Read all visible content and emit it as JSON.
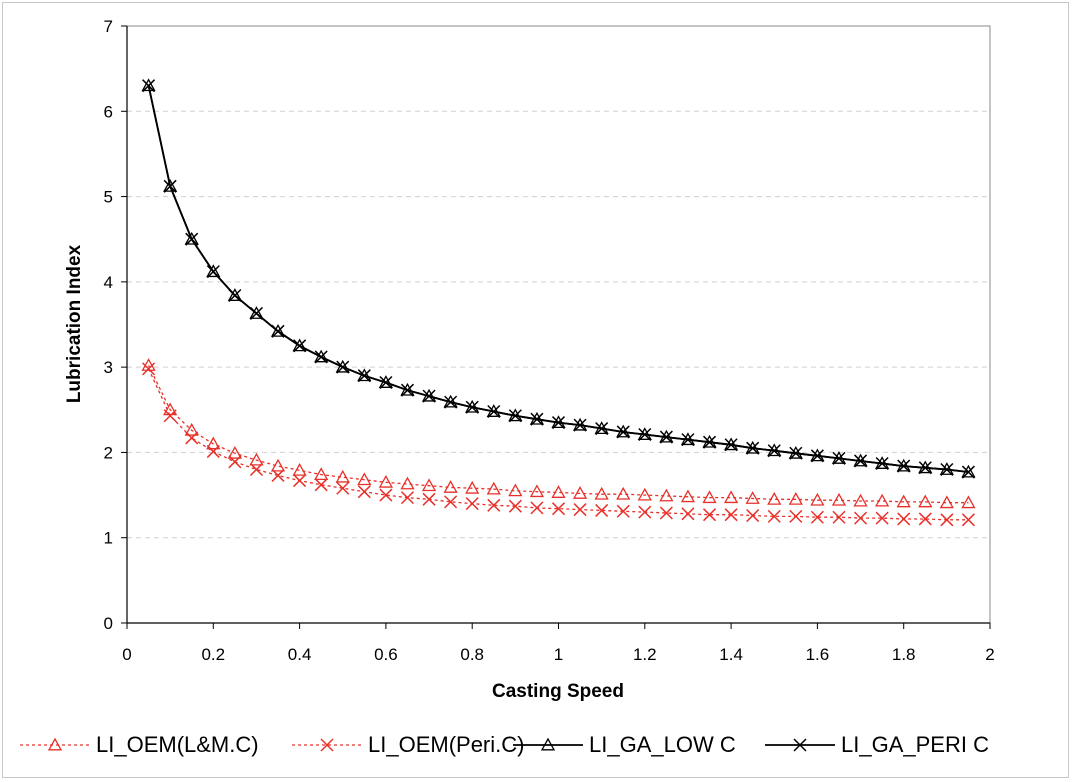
{
  "chart_data": {
    "type": "line",
    "xlabel": "Casting Speed",
    "ylabel": "Lubrication Index",
    "xlim": [
      0,
      2
    ],
    "ylim": [
      0,
      7
    ],
    "x_ticks": [
      "0",
      "0.2",
      "0.4",
      "0.6",
      "0.8",
      "1",
      "1.2",
      "1.4",
      "1.6",
      "1.8",
      "2"
    ],
    "y_ticks": [
      "0",
      "1",
      "2",
      "3",
      "4",
      "5",
      "6",
      "7"
    ],
    "grid": "horizontal dashed",
    "legend_position": "bottom",
    "x": [
      0.05,
      0.1,
      0.15,
      0.2,
      0.25,
      0.3,
      0.35,
      0.4,
      0.45,
      0.5,
      0.55,
      0.6,
      0.65,
      0.7,
      0.75,
      0.8,
      0.85,
      0.9,
      0.95,
      1.0,
      1.05,
      1.1,
      1.15,
      1.2,
      1.25,
      1.3,
      1.35,
      1.4,
      1.45,
      1.5,
      1.55,
      1.6,
      1.65,
      1.7,
      1.75,
      1.8,
      1.85,
      1.9,
      1.95
    ],
    "series": [
      {
        "name": "LI_OEM(L&M.C)",
        "color": "#e8302a",
        "line": "dotted",
        "marker": "triangle",
        "values": [
          3.02,
          2.5,
          2.26,
          2.1,
          1.99,
          1.91,
          1.84,
          1.79,
          1.74,
          1.71,
          1.68,
          1.65,
          1.63,
          1.61,
          1.59,
          1.58,
          1.57,
          1.55,
          1.54,
          1.53,
          1.52,
          1.51,
          1.51,
          1.5,
          1.49,
          1.48,
          1.47,
          1.47,
          1.46,
          1.45,
          1.45,
          1.44,
          1.44,
          1.43,
          1.43,
          1.42,
          1.42,
          1.41,
          1.41
        ]
      },
      {
        "name": "LI_OEM(Peri.C)",
        "color": "#e8302a",
        "line": "dotted",
        "marker": "x",
        "values": [
          2.98,
          2.43,
          2.17,
          2.01,
          1.89,
          1.8,
          1.73,
          1.67,
          1.62,
          1.58,
          1.54,
          1.5,
          1.47,
          1.45,
          1.42,
          1.4,
          1.38,
          1.37,
          1.35,
          1.34,
          1.33,
          1.32,
          1.31,
          1.3,
          1.29,
          1.28,
          1.27,
          1.27,
          1.26,
          1.25,
          1.25,
          1.24,
          1.24,
          1.23,
          1.23,
          1.22,
          1.22,
          1.21,
          1.21
        ]
      },
      {
        "name": "LI_GA_LOW C",
        "color": "#000000",
        "line": "solid",
        "marker": "triangle",
        "values": [
          6.3,
          5.12,
          4.5,
          4.12,
          3.84,
          3.63,
          3.42,
          3.25,
          3.12,
          3.0,
          2.9,
          2.82,
          2.73,
          2.66,
          2.59,
          2.53,
          2.48,
          2.43,
          2.39,
          2.35,
          2.32,
          2.28,
          2.24,
          2.21,
          2.18,
          2.15,
          2.12,
          2.09,
          2.05,
          2.02,
          1.99,
          1.96,
          1.93,
          1.9,
          1.87,
          1.84,
          1.82,
          1.8,
          1.77
        ]
      },
      {
        "name": "LI_GA_PERI C",
        "color": "#000000",
        "line": "solid",
        "marker": "x",
        "values": [
          6.3,
          5.12,
          4.5,
          4.12,
          3.84,
          3.63,
          3.42,
          3.25,
          3.12,
          3.0,
          2.9,
          2.82,
          2.73,
          2.66,
          2.59,
          2.53,
          2.48,
          2.43,
          2.39,
          2.35,
          2.32,
          2.28,
          2.24,
          2.21,
          2.18,
          2.15,
          2.12,
          2.09,
          2.05,
          2.02,
          1.99,
          1.96,
          1.93,
          1.9,
          1.87,
          1.84,
          1.82,
          1.8,
          1.77
        ]
      }
    ]
  }
}
